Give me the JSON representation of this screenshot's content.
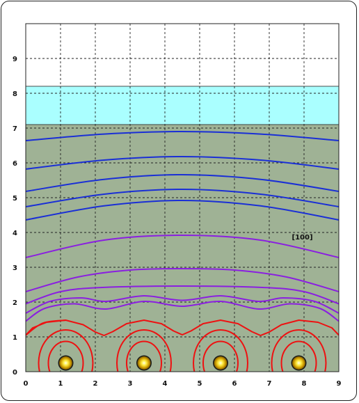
{
  "axes": {
    "x_ticks": [
      "0",
      "1",
      "2",
      "3",
      "4",
      "5",
      "6",
      "7",
      "8",
      "9"
    ],
    "y_ticks": [
      "0",
      "1",
      "2",
      "3",
      "4",
      "5",
      "6",
      "7",
      "8",
      "9"
    ],
    "xlim": [
      0,
      9
    ],
    "ylim": [
      0,
      10
    ],
    "grid": true
  },
  "layers": {
    "soil": {
      "from": 0,
      "to": 7.1,
      "color": "#9fb295"
    },
    "water": {
      "from": 7.1,
      "to": 8.2,
      "color": "#aaffff"
    },
    "air": {
      "from": 8.2,
      "to": 10,
      "color": "#ffffff"
    }
  },
  "annotation": {
    "label": "[100]",
    "x": 7.65,
    "y": 3.8
  },
  "sources": [
    {
      "x": 1.15,
      "y": 0.25
    },
    {
      "x": 3.4,
      "y": 0.25
    },
    {
      "x": 5.6,
      "y": 0.25
    },
    {
      "x": 7.85,
      "y": 0.25
    }
  ],
  "contour_colors": {
    "blue": "#1a2fd6",
    "purple": "#8a1fe0",
    "red": "#ee1111"
  }
}
